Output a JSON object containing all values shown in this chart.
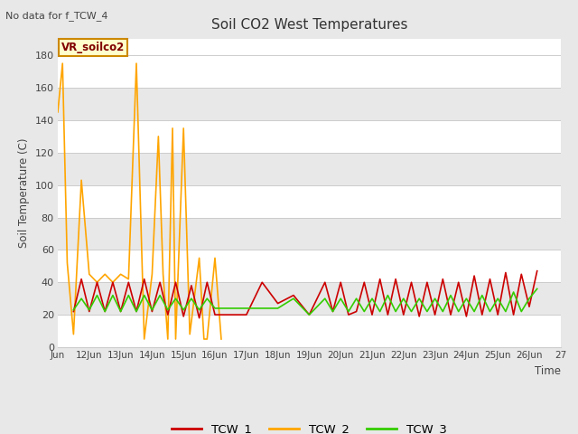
{
  "title": "Soil CO2 West Temperatures",
  "subtitle": "No data for f_TCW_4",
  "ylabel": "Soil Temperature (C)",
  "xlabel": "Time",
  "annotation_label": "VR_soilco2",
  "ylim": [
    0,
    190
  ],
  "yticks": [
    0,
    20,
    40,
    60,
    80,
    100,
    120,
    140,
    160,
    180
  ],
  "fig_bg_color": "#e8e8e8",
  "plot_bg_color": "#ffffff",
  "band_colors": [
    "#ffffff",
    "#e8e8e8"
  ],
  "colors": {
    "TCW_1": "#cc0000",
    "TCW_2": "#ffa500",
    "TCW_3": "#33cc00"
  },
  "x_start": 11.0,
  "x_end": 27.0,
  "xtick_positions": [
    11,
    12,
    13,
    14,
    15,
    16,
    17,
    18,
    19,
    20,
    21,
    22,
    23,
    24,
    25,
    26,
    27
  ],
  "xtick_labels": [
    "Jun",
    "12Jun",
    "13Jun",
    "14Jun",
    "15Jun",
    "16Jun",
    "17Jun",
    "18Jun",
    "19Jun",
    "20Jun",
    "21Jun",
    "22Jun",
    "23Jun",
    "24Jun",
    "25Jun",
    "26Jun",
    "27"
  ],
  "TCW_1_x": [
    11.5,
    11.75,
    12.0,
    12.25,
    12.5,
    12.75,
    13.0,
    13.25,
    13.5,
    13.75,
    14.0,
    14.25,
    14.5,
    14.75,
    15.0,
    15.25,
    15.5,
    15.75,
    16.0,
    17.0,
    17.2,
    17.5,
    18.0,
    18.5,
    19.0,
    19.5,
    19.75,
    20.0,
    20.25,
    20.5,
    20.75,
    21.0,
    21.25,
    21.5,
    21.75,
    22.0,
    22.25,
    22.5,
    22.75,
    23.0,
    23.25,
    23.5,
    23.75,
    24.0,
    24.25,
    24.5,
    24.75,
    25.0,
    25.25,
    25.5,
    25.75,
    26.0,
    26.25
  ],
  "TCW_1_y": [
    22,
    42,
    22,
    40,
    22,
    40,
    22,
    40,
    22,
    42,
    22,
    40,
    20,
    40,
    19,
    38,
    18,
    40,
    20,
    20,
    28,
    40,
    27,
    32,
    20,
    40,
    22,
    40,
    20,
    22,
    40,
    20,
    42,
    20,
    42,
    20,
    40,
    19,
    40,
    20,
    42,
    20,
    40,
    19,
    44,
    20,
    42,
    20,
    46,
    20,
    45,
    25,
    47
  ],
  "TCW_2_x": [
    11.0,
    11.15,
    11.3,
    11.5,
    11.75,
    12.0,
    12.25,
    12.5,
    12.75,
    13.0,
    13.25,
    13.5,
    13.75,
    14.0,
    14.2,
    14.35,
    14.5,
    14.65,
    14.75,
    15.0,
    15.2,
    15.5,
    15.65,
    15.75,
    16.0,
    16.2
  ],
  "TCW_2_y": [
    145,
    175,
    52,
    8,
    103,
    45,
    40,
    45,
    40,
    45,
    42,
    175,
    5,
    45,
    130,
    45,
    5,
    135,
    5,
    135,
    8,
    55,
    5,
    5,
    55,
    5
  ],
  "TCW_3_x": [
    11.5,
    11.75,
    12.0,
    12.25,
    12.5,
    12.75,
    13.0,
    13.25,
    13.5,
    13.75,
    14.0,
    14.25,
    14.5,
    14.75,
    15.0,
    15.25,
    15.5,
    15.75,
    16.0,
    17.5,
    18.0,
    18.5,
    19.0,
    19.5,
    19.75,
    20.0,
    20.25,
    20.5,
    20.75,
    21.0,
    21.25,
    21.5,
    21.75,
    22.0,
    22.25,
    22.5,
    22.75,
    23.0,
    23.25,
    23.5,
    23.75,
    24.0,
    24.25,
    24.5,
    24.75,
    25.0,
    25.25,
    25.5,
    25.75,
    26.0,
    26.25
  ],
  "TCW_3_y": [
    23,
    30,
    23,
    32,
    22,
    32,
    22,
    32,
    22,
    32,
    23,
    32,
    23,
    30,
    23,
    30,
    23,
    30,
    24,
    24,
    24,
    30,
    20,
    30,
    22,
    30,
    22,
    30,
    22,
    30,
    22,
    32,
    22,
    30,
    22,
    30,
    22,
    30,
    22,
    32,
    22,
    30,
    22,
    32,
    22,
    30,
    22,
    34,
    22,
    30,
    36
  ]
}
